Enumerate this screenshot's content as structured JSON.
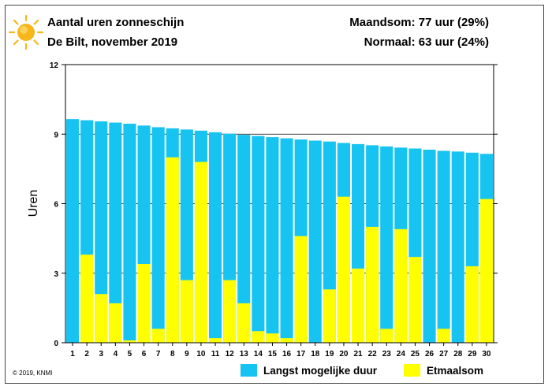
{
  "header": {
    "title": "Aantal uren zonneschijn",
    "subtitle": "De Bilt, november 2019",
    "month_total": "Maandsom: 77 uur (29%)",
    "normal": "Normaal: 63 uur (24%)"
  },
  "footer": {
    "copyright": "© 2019, KNMI"
  },
  "colors": {
    "max_duration": "#17c4f1",
    "daily_sum": "#ffff00",
    "sun": "#f7b71c"
  },
  "icons": {
    "logo": "sun-icon"
  },
  "chart_data": {
    "type": "bar",
    "ylabel": "Uren",
    "xlabel": "",
    "ylim": [
      0,
      12
    ],
    "yticks": [
      0,
      3,
      6,
      9,
      12
    ],
    "grid": true,
    "legend_position": "bottom-right",
    "categories": [
      "1",
      "2",
      "3",
      "4",
      "5",
      "6",
      "7",
      "8",
      "9",
      "10",
      "11",
      "12",
      "13",
      "14",
      "15",
      "16",
      "17",
      "18",
      "19",
      "20",
      "21",
      "22",
      "23",
      "24",
      "25",
      "26",
      "27",
      "28",
      "29",
      "30"
    ],
    "series": [
      {
        "name": "Langst mogelijke duur",
        "values": [
          9.65,
          9.6,
          9.55,
          9.5,
          9.45,
          9.37,
          9.3,
          9.25,
          9.2,
          9.15,
          9.08,
          9.02,
          8.97,
          8.92,
          8.87,
          8.82,
          8.77,
          8.72,
          8.68,
          8.62,
          8.57,
          8.52,
          8.47,
          8.42,
          8.38,
          8.33,
          8.28,
          8.25,
          8.2,
          8.15
        ]
      },
      {
        "name": "Etmaalsom",
        "values": [
          0,
          3.8,
          2.1,
          1.7,
          0.1,
          3.4,
          0.6,
          8.0,
          2.7,
          7.8,
          0.2,
          2.7,
          1.7,
          0.5,
          0.4,
          0.2,
          4.6,
          0,
          2.3,
          6.3,
          3.2,
          5.0,
          0.6,
          4.9,
          3.7,
          0,
          0.6,
          0,
          3.3,
          6.2
        ]
      }
    ]
  }
}
